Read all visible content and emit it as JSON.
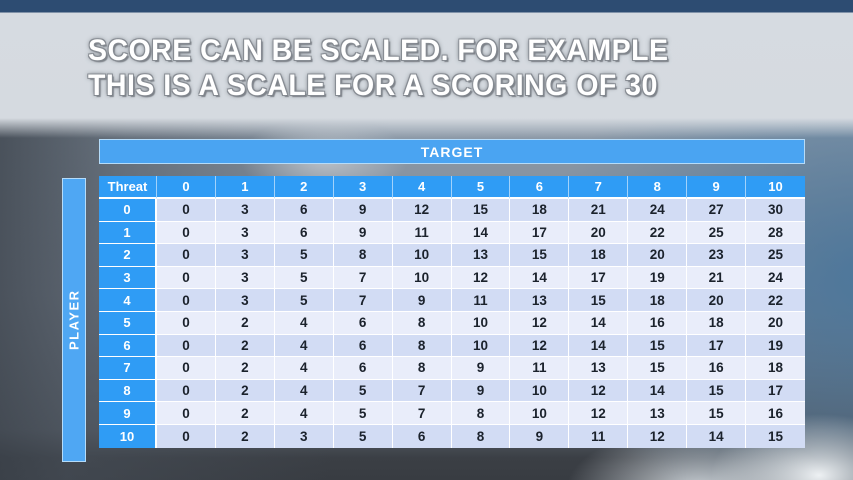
{
  "slide": {
    "title_line1": "SCORE CAN BE SCALED. FOR EXAMPLE",
    "title_line2": "THIS IS A SCALE FOR A SCORING OF 30"
  },
  "table": {
    "target_label": "TARGET",
    "player_label": "PLAYER",
    "corner_label": "Threat",
    "column_headers": [
      "0",
      "1",
      "2",
      "3",
      "4",
      "5",
      "6",
      "7",
      "8",
      "9",
      "10"
    ],
    "rows": [
      {
        "header": "0",
        "values": [
          0,
          3,
          6,
          9,
          12,
          15,
          18,
          21,
          24,
          27,
          30
        ]
      },
      {
        "header": "1",
        "values": [
          0,
          3,
          6,
          9,
          11,
          14,
          17,
          20,
          22,
          25,
          28
        ]
      },
      {
        "header": "2",
        "values": [
          0,
          3,
          5,
          8,
          10,
          13,
          15,
          18,
          20,
          23,
          25
        ]
      },
      {
        "header": "3",
        "values": [
          0,
          3,
          5,
          7,
          10,
          12,
          14,
          17,
          19,
          21,
          24
        ]
      },
      {
        "header": "4",
        "values": [
          0,
          3,
          5,
          7,
          9,
          11,
          13,
          15,
          18,
          20,
          22
        ]
      },
      {
        "header": "5",
        "values": [
          0,
          2,
          4,
          6,
          8,
          10,
          12,
          14,
          16,
          18,
          20
        ]
      },
      {
        "header": "6",
        "values": [
          0,
          2,
          4,
          6,
          8,
          10,
          12,
          14,
          15,
          17,
          19
        ]
      },
      {
        "header": "7",
        "values": [
          0,
          2,
          4,
          6,
          8,
          9,
          11,
          13,
          15,
          16,
          18
        ]
      },
      {
        "header": "8",
        "values": [
          0,
          2,
          4,
          5,
          7,
          9,
          10,
          12,
          14,
          15,
          17
        ]
      },
      {
        "header": "9",
        "values": [
          0,
          2,
          4,
          5,
          7,
          8,
          10,
          12,
          13,
          15,
          16
        ]
      },
      {
        "header": "10",
        "values": [
          0,
          2,
          3,
          5,
          6,
          8,
          9,
          11,
          12,
          14,
          15
        ]
      }
    ]
  },
  "colors": {
    "header_blue": "#2f9cf5",
    "target_bar": "#4aa4f2",
    "player_bar": "#4fa7f3",
    "bar_border": "#b5dcfa",
    "row_even": "#d2dcf4",
    "row_odd": "#e9edfa",
    "cell_border": "#ffffff",
    "cell_text": "#1b222c",
    "header_text": "#ffffff"
  }
}
